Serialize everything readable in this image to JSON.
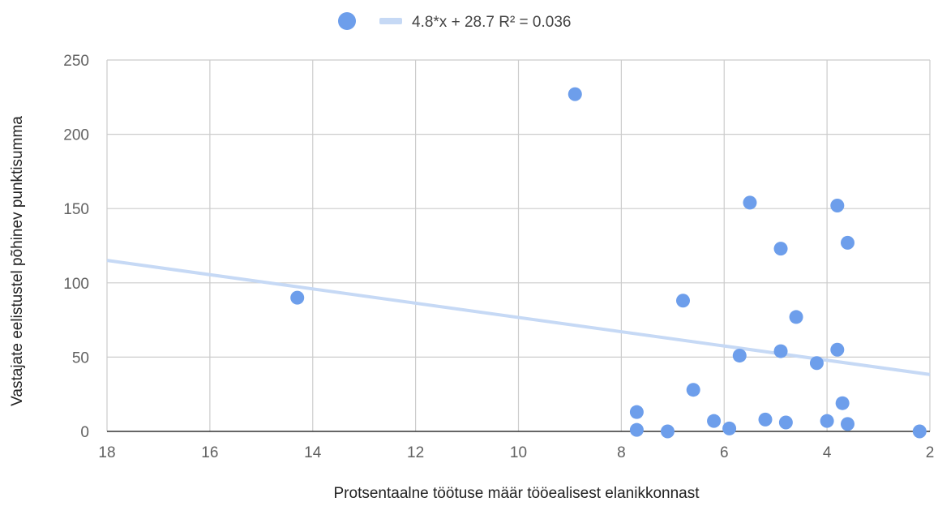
{
  "chart_data": {
    "type": "scatter",
    "title": "",
    "xlabel": "Protsentaalne töötuse määr tööealisest elanikkonnast",
    "ylabel": "Vastajate eelistustel põhinev punktisumma",
    "xlim": [
      18,
      2
    ],
    "x_reversed": true,
    "ylim": [
      0,
      250
    ],
    "x_ticks": [
      18,
      16,
      14,
      12,
      10,
      8,
      6,
      4,
      2
    ],
    "y_ticks": [
      0,
      50,
      100,
      150,
      200,
      250
    ],
    "grid": true,
    "legend_position": "top",
    "series": [
      {
        "color": "#6d9eeb",
        "points": [
          {
            "x": 14.3,
            "y": 90
          },
          {
            "x": 8.9,
            "y": 227
          },
          {
            "x": 7.7,
            "y": 13
          },
          {
            "x": 7.7,
            "y": 1
          },
          {
            "x": 7.1,
            "y": 0
          },
          {
            "x": 6.8,
            "y": 88
          },
          {
            "x": 6.6,
            "y": 28
          },
          {
            "x": 6.2,
            "y": 7
          },
          {
            "x": 5.9,
            "y": 2
          },
          {
            "x": 5.7,
            "y": 51
          },
          {
            "x": 5.5,
            "y": 154
          },
          {
            "x": 5.2,
            "y": 8
          },
          {
            "x": 4.9,
            "y": 123
          },
          {
            "x": 4.9,
            "y": 54
          },
          {
            "x": 4.8,
            "y": 6
          },
          {
            "x": 4.6,
            "y": 77
          },
          {
            "x": 4.2,
            "y": 46
          },
          {
            "x": 4.0,
            "y": 7
          },
          {
            "x": 3.8,
            "y": 152
          },
          {
            "x": 3.8,
            "y": 55
          },
          {
            "x": 3.7,
            "y": 19
          },
          {
            "x": 3.6,
            "y": 127
          },
          {
            "x": 3.6,
            "y": 5
          },
          {
            "x": 2.2,
            "y": 0
          }
        ]
      }
    ],
    "trendline": {
      "type": "linear",
      "slope": 4.8,
      "intercept": 28.7,
      "r_squared": 0.036,
      "label": "4.8*x + 28.7 R² = 0.036",
      "color": "#c6d9f5"
    }
  }
}
